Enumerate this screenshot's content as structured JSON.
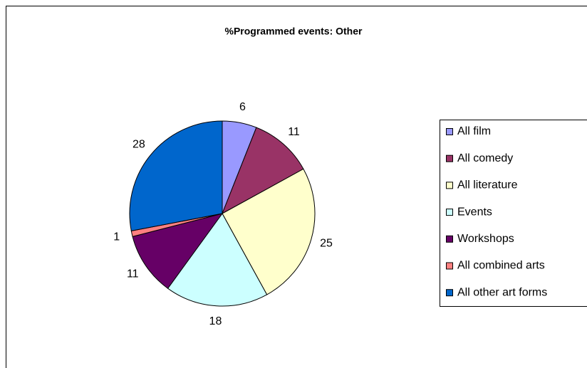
{
  "chart_data": {
    "type": "pie",
    "title": "%Programmed events: Other",
    "categories": [
      "All film",
      "All comedy",
      "All literature",
      "Events",
      "Workshops",
      "All combined arts",
      "All other art forms"
    ],
    "values": [
      6,
      11,
      25,
      18,
      11,
      1,
      28
    ],
    "colors": [
      "#9999ff",
      "#993366",
      "#ffffcc",
      "#ccffff",
      "#660066",
      "#ff8080",
      "#0066cc"
    ],
    "legend": "right"
  }
}
